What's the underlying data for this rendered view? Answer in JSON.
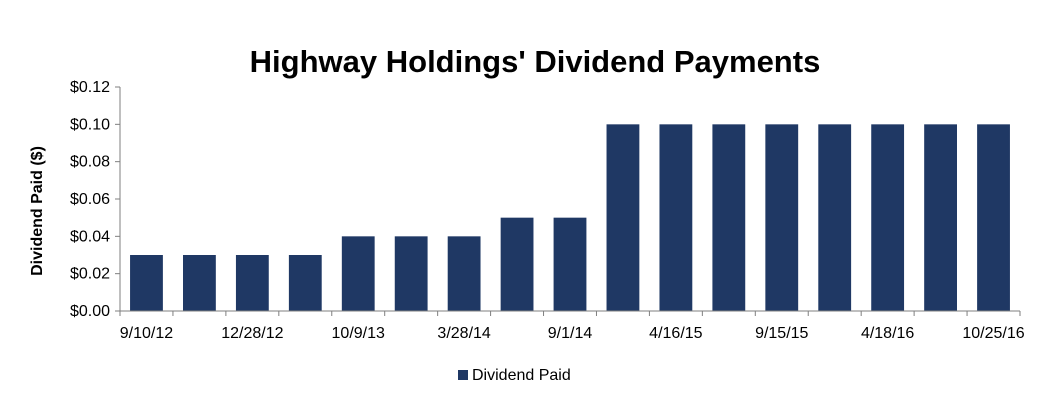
{
  "chart_data": {
    "type": "bar",
    "title": "Highway Holdings' Dividend Payments",
    "xlabel": "",
    "ylabel": "Dividend Paid ($)",
    "ylim": [
      0,
      0.12
    ],
    "yticks": [
      "$0.00",
      "$0.02",
      "$0.04",
      "$0.06",
      "$0.08",
      "$0.10",
      "$0.12"
    ],
    "categories": [
      "9/10/12",
      "",
      "12/28/12",
      "",
      "10/9/13",
      "",
      "3/28/14",
      "",
      "9/1/14",
      "",
      "4/16/15",
      "",
      "9/15/15",
      "",
      "4/18/16",
      "",
      "10/25/16"
    ],
    "series": [
      {
        "name": "Dividend Paid",
        "color": "#1f3864",
        "values": [
          0.03,
          0.03,
          0.03,
          0.03,
          0.04,
          0.04,
          0.04,
          0.05,
          0.05,
          0.1,
          0.1,
          0.1,
          0.1,
          0.1,
          0.1,
          0.1,
          0.1
        ]
      }
    ],
    "grid": false,
    "legend": "bottom-center"
  }
}
